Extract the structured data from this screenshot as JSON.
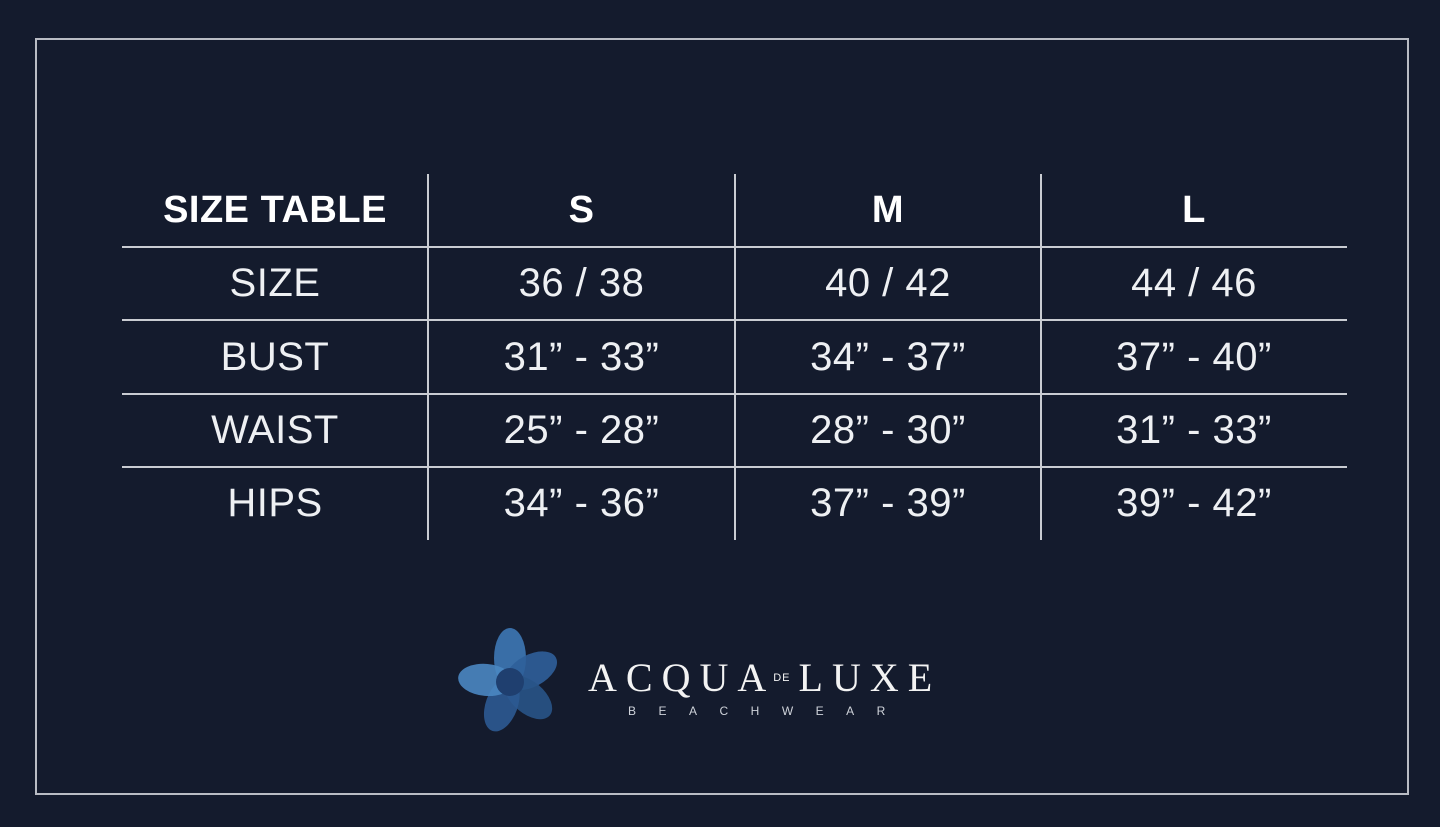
{
  "size_table": {
    "headers": [
      "SIZE TABLE",
      "S",
      "M",
      "L"
    ],
    "rows": [
      {
        "label": "SIZE",
        "values": [
          "36 / 38",
          "40 / 42",
          "44 / 46"
        ]
      },
      {
        "label": "BUST",
        "values": [
          "31” - 33”",
          "34” - 37”",
          "37” - 40”"
        ]
      },
      {
        "label": "WAIST",
        "values": [
          "25” - 28”",
          "28” - 30”",
          "31” - 33”"
        ]
      },
      {
        "label": "HIPS",
        "values": [
          "34” - 36”",
          "37” - 39”",
          "39” - 42”"
        ]
      }
    ]
  },
  "logo": {
    "brand_part1": "ACQUA",
    "brand_de": "DE",
    "brand_part2": "LUXE",
    "tagline": "BEACHWEAR",
    "icon": "flower-icon"
  },
  "colors": {
    "background": "#141b2d",
    "text": "#ffffff",
    "lines": "#c9ccd2",
    "flower": "#3a6fa8"
  }
}
